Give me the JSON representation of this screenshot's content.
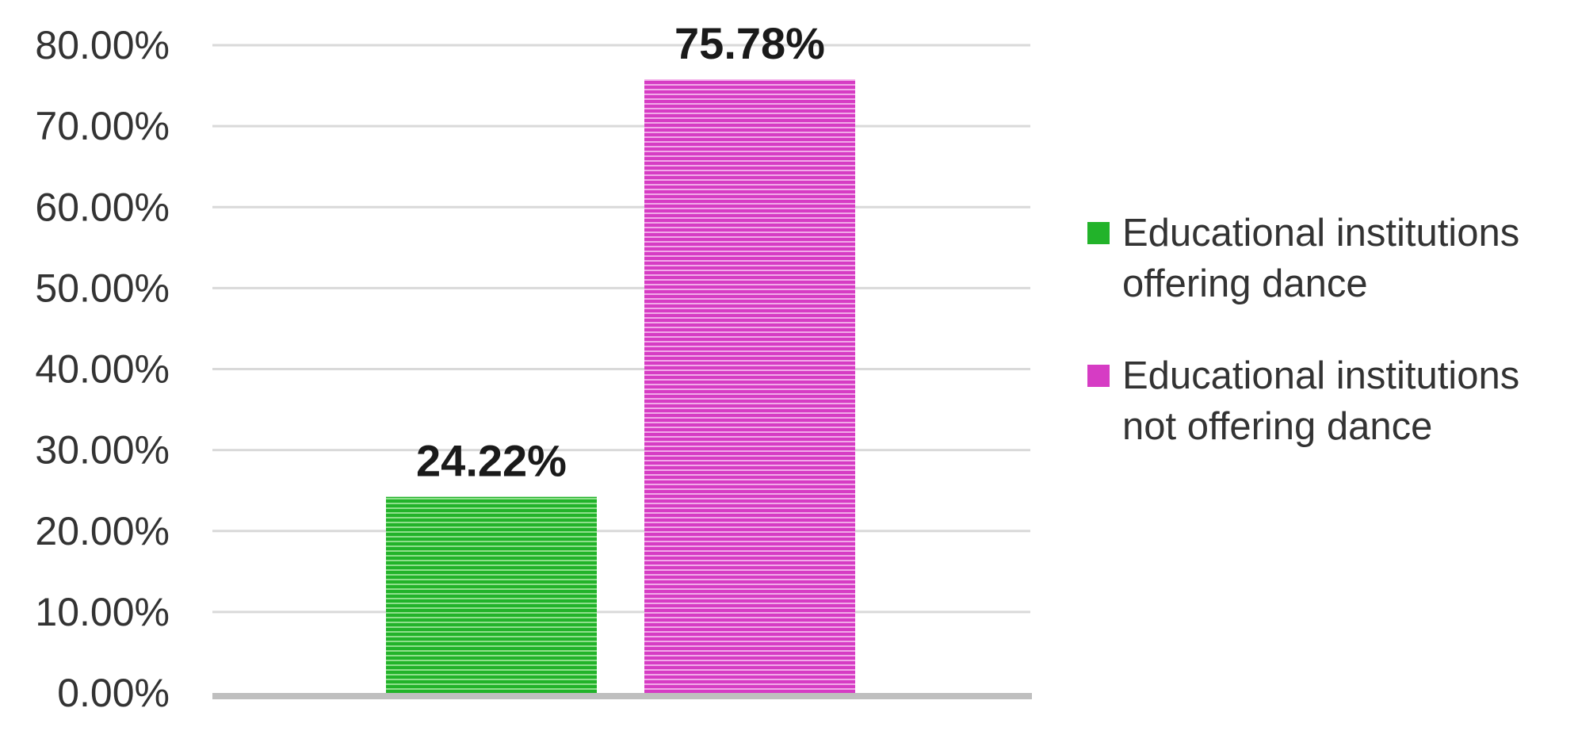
{
  "chart_data": {
    "type": "bar",
    "categories": [
      "Educational institutions offering dance",
      "Educational institutions not offering dance"
    ],
    "values": [
      24.22,
      75.78
    ],
    "data_labels": [
      "24.22%",
      "75.78%"
    ],
    "colors": [
      "#22b32a",
      "#d63cc4"
    ],
    "ylim": [
      0,
      80
    ],
    "yticks": [
      0,
      10,
      20,
      30,
      40,
      50,
      60,
      70,
      80
    ],
    "ytick_labels": [
      "0.00%",
      "10.00%",
      "20.00%",
      "30.00%",
      "40.00%",
      "50.00%",
      "60.00%",
      "70.00%",
      "80.00%"
    ],
    "grid": true,
    "legend_position": "right",
    "legend": [
      {
        "line1": "Educational institutions",
        "line2": "offering dance",
        "color": "#22b32a"
      },
      {
        "line1": "Educational institutions",
        "line2": "not offering dance",
        "color": "#d63cc4"
      }
    ]
  }
}
